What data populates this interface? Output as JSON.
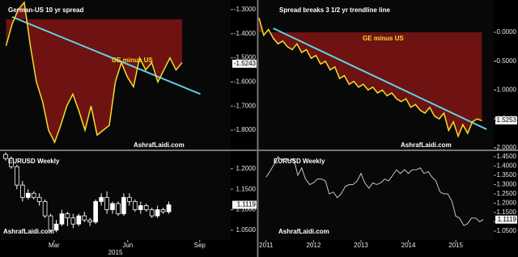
{
  "chart_data": [
    {
      "type": "line",
      "title": "German-US 10 yr spread",
      "annotation": "GE minus US",
      "watermark": "AshrafLaidi.com",
      "values": [
        -1.45,
        -1.36,
        -1.3,
        -1.27,
        -1.45,
        -1.6,
        -1.68,
        -1.8,
        -1.85,
        -1.78,
        -1.7,
        -1.65,
        -1.72,
        -1.8,
        -1.7,
        -1.82,
        -1.8,
        -1.78,
        -1.6,
        -1.52,
        -1.58,
        -1.62,
        -1.5,
        -1.55,
        -1.52,
        -1.6,
        -1.55,
        -1.5,
        -1.55,
        -1.52
      ],
      "color": "#f2df2a",
      "fill_to": -1.34,
      "fill_color": "#6e1212",
      "trendline": {
        "x": [
          1,
          32
        ],
        "y": [
          -1.33,
          -1.65
        ],
        "color": "#5fd3e6"
      },
      "last_value": -1.5243,
      "xlim": [
        -1,
        37
      ],
      "ylim": [
        -1.88,
        -1.26
      ],
      "yticks": [
        {
          "value": -1.3,
          "label": "-1.3000"
        },
        {
          "value": -1.4,
          "label": "-1.4000"
        },
        {
          "value": -1.5,
          "label": "-1.5000"
        },
        {
          "value": -1.6,
          "label": "-1.6000"
        },
        {
          "value": -1.7,
          "label": "-1.7000"
        },
        {
          "value": -1.8,
          "label": "-1.8000"
        }
      ]
    },
    {
      "type": "line",
      "title": "Spread breaks 3 1/2 yr trendline line",
      "annotation": "GE minus US",
      "watermark": "AshrafLaidi.com",
      "values": [
        0.25,
        -0.05,
        0.05,
        -0.1,
        -0.2,
        -0.15,
        -0.25,
        -0.3,
        -0.2,
        -0.35,
        -0.3,
        -0.45,
        -0.4,
        -0.55,
        -0.5,
        -0.65,
        -0.6,
        -0.8,
        -0.75,
        -0.9,
        -0.85,
        -0.95,
        -0.9,
        -1.0,
        -0.95,
        -1.05,
        -1.0,
        -1.1,
        -1.05,
        -1.15,
        -1.2,
        -1.15,
        -1.3,
        -1.25,
        -1.35,
        -1.4,
        -1.3,
        -1.45,
        -1.5,
        -1.4,
        -1.7,
        -1.55,
        -1.8,
        -1.6,
        -1.75,
        -1.55,
        -1.5,
        -1.53
      ],
      "color": "#f2df2a",
      "fill_to": 0,
      "fill_color": "#6e1212",
      "trendline": {
        "x": [
          3,
          48
        ],
        "y": [
          0.07,
          -1.68
        ],
        "color": "#5fd3e6"
      },
      "last_value": -1.5253,
      "xlim": [
        0,
        49.5
      ],
      "ylim": [
        -2.03,
        0.56
      ],
      "yticks": [
        {
          "value": 0,
          "label": "0.0000"
        },
        {
          "value": -0.5,
          "label": "-0.5000"
        },
        {
          "value": -1,
          "label": "-1.0000"
        },
        {
          "value": -1.5,
          "label": "-1.5000"
        },
        {
          "value": -2,
          "label": "-2.0000"
        }
      ]
    },
    {
      "type": "candlestick",
      "title": "EURUSD Weekly",
      "watermark": "AshrafLaidi.com",
      "x_label": "2015",
      "open": [
        1.235,
        1.225,
        1.205,
        1.16,
        1.13,
        1.14,
        1.13,
        1.12,
        1.085,
        1.05,
        1.065,
        1.09,
        1.08,
        1.065,
        1.085,
        1.075,
        1.07,
        1.12,
        1.13,
        1.1,
        1.115,
        1.09,
        1.13,
        1.12,
        1.1,
        1.11,
        1.1,
        1.085,
        1.1,
        1.095
      ],
      "high": [
        1.24,
        1.23,
        1.21,
        1.17,
        1.15,
        1.145,
        1.14,
        1.125,
        1.09,
        1.075,
        1.1,
        1.095,
        1.09,
        1.09,
        1.095,
        1.08,
        1.125,
        1.14,
        1.145,
        1.12,
        1.12,
        1.14,
        1.14,
        1.125,
        1.12,
        1.115,
        1.105,
        1.11,
        1.105,
        1.12
      ],
      "low": [
        1.22,
        1.2,
        1.15,
        1.12,
        1.125,
        1.125,
        1.11,
        1.08,
        1.045,
        1.045,
        1.06,
        1.06,
        1.055,
        1.06,
        1.07,
        1.06,
        1.065,
        1.11,
        1.09,
        1.09,
        1.085,
        1.085,
        1.11,
        1.095,
        1.09,
        1.095,
        1.08,
        1.08,
        1.09,
        1.09
      ],
      "close": [
        1.225,
        1.205,
        1.16,
        1.13,
        1.14,
        1.13,
        1.12,
        1.085,
        1.05,
        1.065,
        1.09,
        1.08,
        1.065,
        1.085,
        1.075,
        1.07,
        1.12,
        1.13,
        1.1,
        1.115,
        1.09,
        1.13,
        1.12,
        1.1,
        1.11,
        1.1,
        1.085,
        1.1,
        1.095,
        1.112
      ],
      "last_value": 1.1119,
      "xlim": [
        -1,
        40
      ],
      "ylim": [
        1.026,
        1.243
      ],
      "xticks": [
        {
          "value": 8.6,
          "label": "Mar"
        },
        {
          "value": 21.7,
          "label": "Jun"
        },
        {
          "value": 34.5,
          "label": "Sep"
        }
      ],
      "yticks": [
        {
          "value": 1.2,
          "label": "1.2000"
        },
        {
          "value": 1.15,
          "label": "1.1500"
        },
        {
          "value": 1.1,
          "label": "1.1000"
        },
        {
          "value": 1.05,
          "label": "1.0500"
        }
      ]
    },
    {
      "type": "line",
      "title": "EURUSD Weekly",
      "watermark": "AshrafLaidi.com",
      "color": "#d8d8d8",
      "x": [
        2011.0,
        2011.08,
        2011.17,
        2011.25,
        2011.33,
        2011.42,
        2011.5,
        2011.58,
        2011.67,
        2011.75,
        2011.83,
        2011.92,
        2012.0,
        2012.08,
        2012.17,
        2012.25,
        2012.33,
        2012.42,
        2012.5,
        2012.58,
        2012.67,
        2012.75,
        2012.83,
        2012.92,
        2013.0,
        2013.08,
        2013.17,
        2013.25,
        2013.33,
        2013.42,
        2013.5,
        2013.58,
        2013.67,
        2013.75,
        2013.83,
        2013.92,
        2014.0,
        2014.08,
        2014.17,
        2014.25,
        2014.33,
        2014.42,
        2014.5,
        2014.58,
        2014.67,
        2014.75,
        2014.83,
        2014.92,
        2015.0,
        2015.08,
        2015.17,
        2015.25,
        2015.33,
        2015.42,
        2015.5,
        2015.58
      ],
      "values": [
        1.34,
        1.37,
        1.41,
        1.45,
        1.43,
        1.44,
        1.43,
        1.44,
        1.35,
        1.39,
        1.33,
        1.3,
        1.31,
        1.33,
        1.33,
        1.32,
        1.25,
        1.26,
        1.23,
        1.25,
        1.29,
        1.3,
        1.3,
        1.32,
        1.36,
        1.31,
        1.28,
        1.31,
        1.3,
        1.31,
        1.33,
        1.32,
        1.35,
        1.38,
        1.36,
        1.38,
        1.36,
        1.38,
        1.38,
        1.39,
        1.36,
        1.37,
        1.34,
        1.32,
        1.26,
        1.25,
        1.25,
        1.21,
        1.13,
        1.12,
        1.08,
        1.09,
        1.12,
        1.12,
        1.1,
        1.112
      ],
      "last_value": 1.1119,
      "xlim": [
        2010.85,
        2015.8
      ],
      "ylim": [
        1.002,
        1.48
      ],
      "xticks": [
        2011,
        2012,
        2013,
        2014,
        2015
      ],
      "yticks": [
        {
          "value": 1.45,
          "label": "1.4500"
        },
        {
          "value": 1.4,
          "label": "1.4000"
        },
        {
          "value": 1.35,
          "label": "1.3500"
        },
        {
          "value": 1.3,
          "label": "1.3000"
        },
        {
          "value": 1.25,
          "label": "1.2500"
        },
        {
          "value": 1.2,
          "label": "1.2000"
        },
        {
          "value": 1.15,
          "label": "1.1500"
        },
        {
          "value": 1.1,
          "label": "1.1000"
        },
        {
          "value": 1.05,
          "label": "1.0500"
        }
      ]
    }
  ]
}
